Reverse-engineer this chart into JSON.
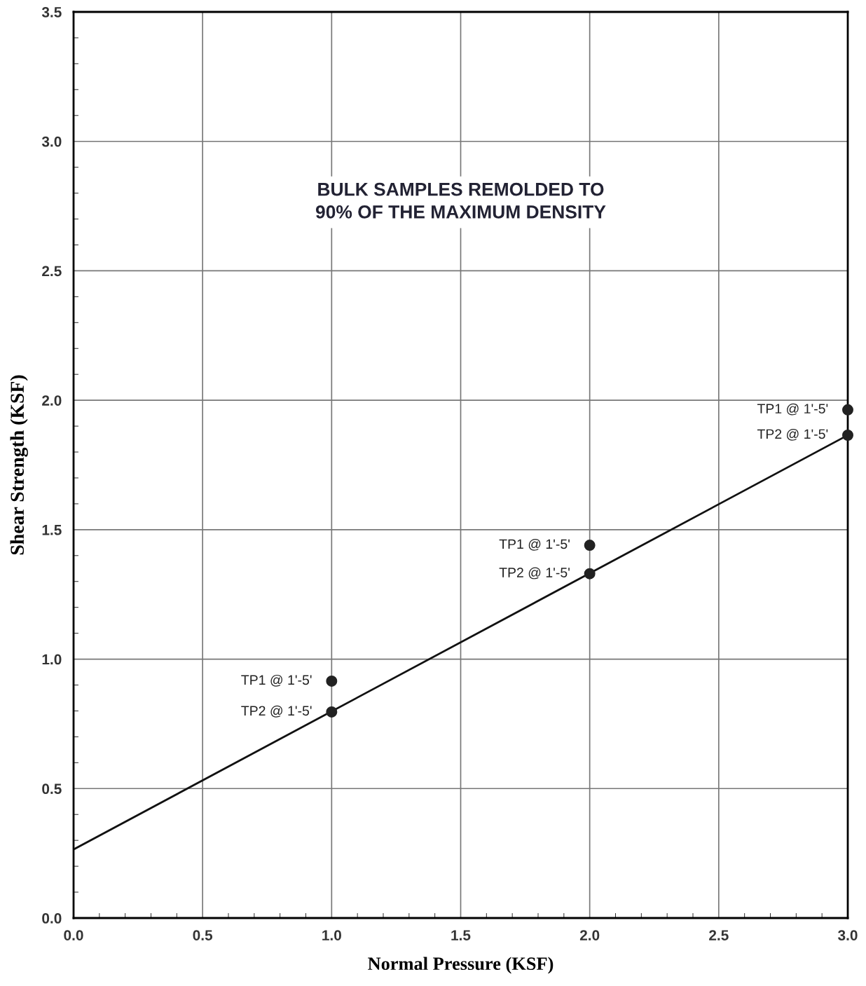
{
  "chart_data": {
    "type": "scatter",
    "xlabel": "Normal Pressure (KSF)",
    "ylabel": "Shear Strength (KSF)",
    "x": [
      1,
      1,
      2,
      2,
      3,
      3
    ],
    "values": [
      0.915,
      0.796,
      1.44,
      1.33,
      1.963,
      1.865
    ],
    "color": "#222222",
    "marker": "circle",
    "series": [
      {
        "type": "line",
        "x": [
          0,
          3
        ],
        "values": [
          0.265,
          1.865
        ],
        "color": "#111111",
        "line_style": "solid",
        "marker": "none"
      }
    ],
    "xlim": [
      0,
      3
    ],
    "ylim": [
      0,
      3.5
    ],
    "xticks": [
      {
        "value": 0,
        "label": "0.0"
      },
      {
        "value": 0.5,
        "label": "0.5"
      },
      {
        "value": 1,
        "label": "1.0"
      },
      {
        "value": 1.5,
        "label": "1.5"
      },
      {
        "value": 2,
        "label": "2.0"
      },
      {
        "value": 2.5,
        "label": "2.5"
      },
      {
        "value": 3,
        "label": "3.0"
      }
    ],
    "yticks": [
      {
        "value": 0,
        "label": "0.0"
      },
      {
        "value": 0.5,
        "label": "0.5"
      },
      {
        "value": 1,
        "label": "1.0"
      },
      {
        "value": 1.5,
        "label": "1.5"
      },
      {
        "value": 2,
        "label": "2.0"
      },
      {
        "value": 2.5,
        "label": "2.5"
      },
      {
        "value": 3,
        "label": "3.0"
      },
      {
        "value": 3.5,
        "label": "3.5"
      }
    ],
    "grid": true,
    "annotations": [
      "BULK SAMPLES REMOLDED TO\n90% OF THE MAXIMUM DENSITY",
      {
        "text": "TP1 @ 1'-5'",
        "x": 1,
        "y": 0.915
      },
      {
        "text": "TP2 @ 1'-5'",
        "x": 1,
        "y": 0.796
      },
      {
        "text": "TP1 @ 1'-5'",
        "x": 2,
        "y": 1.44
      },
      {
        "text": "TP2 @ 1'-5'",
        "x": 2,
        "y": 1.33
      },
      {
        "text": "TP1 @ 1'-5'",
        "x": 3,
        "y": 1.963
      },
      {
        "text": "TP2 @ 1'-5'",
        "x": 3,
        "y": 1.865
      }
    ]
  }
}
